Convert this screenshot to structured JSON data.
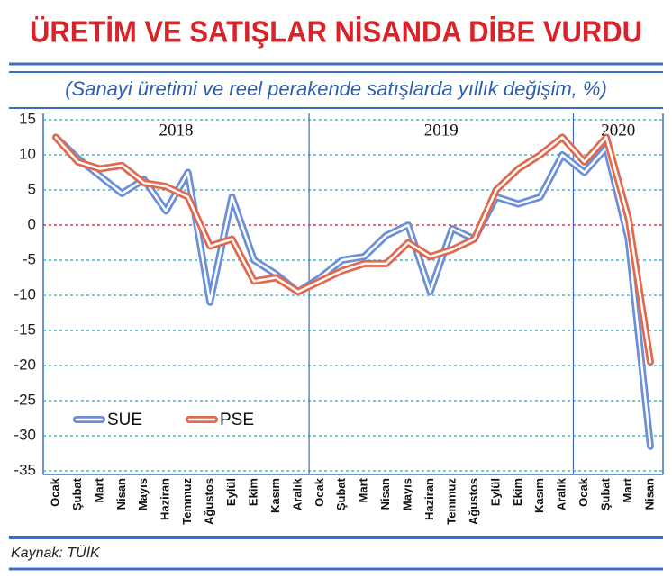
{
  "chart_data": {
    "type": "line",
    "title": "ÜRETİM VE SATIŞLAR NİSANDA DİBE VURDU",
    "subtitle": "(Sanayi üretimi ve reel perakende satışlarda yıllık değişim, %)",
    "source": "Kaynak: TÜİK",
    "x_groups": [
      "2018",
      "2019",
      "2020"
    ],
    "categories": [
      "Ocak",
      "Şubat",
      "Mart",
      "Nisan",
      "Mayıs",
      "Haziran",
      "Temmuz",
      "Ağustos",
      "Eylül",
      "Ekim",
      "Kasım",
      "Aralık",
      "Ocak",
      "Şubat",
      "Mart",
      "Nisan",
      "Mayıs",
      "Haziran",
      "Temmuz",
      "Ağustos",
      "Eylül",
      "Ekim",
      "Kasım",
      "Aralık",
      "Ocak",
      "Şubat",
      "Mart",
      "Nisan"
    ],
    "series": [
      {
        "name": "SUE",
        "color": "#6b8fd8",
        "values": [
          12.5,
          9.5,
          7,
          4.5,
          6.5,
          2,
          7.5,
          -11,
          4,
          -5,
          -7,
          -9.5,
          -7.5,
          -5,
          -4.5,
          -1.5,
          0,
          -9.5,
          -0.5,
          -2,
          4,
          3,
          4,
          10,
          7.5,
          11,
          -2,
          -31.5
        ]
      },
      {
        "name": "PSE",
        "color": "#e06a50",
        "values": [
          12.5,
          9,
          8,
          8.5,
          6,
          5.5,
          4,
          -3,
          -2,
          -8,
          -7.5,
          -9.5,
          -8,
          -6.5,
          -5.5,
          -5.5,
          -2.5,
          -4.5,
          -3.5,
          -2,
          5,
          8,
          10,
          12.5,
          9,
          12.5,
          1,
          -19.5
        ]
      }
    ],
    "ylim": [
      -35,
      15
    ],
    "yticks": [
      -35,
      -30,
      -25,
      -20,
      -15,
      -10,
      -5,
      0,
      5,
      10,
      15
    ],
    "grid": true,
    "legend": "lower left"
  }
}
